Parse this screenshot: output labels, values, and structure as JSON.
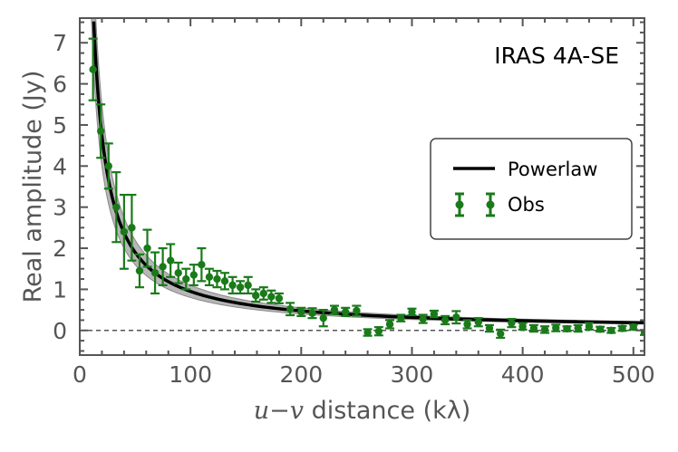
{
  "chart_data": {
    "type": "scatter",
    "title": "",
    "annotation": "IRAS 4A-SE",
    "xlabel_italic": "u−v",
    "xlabel_rest": " distance (kλ)",
    "ylabel": "Real amplitude (Jy)",
    "xlim": [
      0,
      510
    ],
    "ylim": [
      -0.6,
      7.6
    ],
    "xticks": [
      0,
      100,
      200,
      300,
      400,
      500
    ],
    "yticks": [
      0,
      1,
      2,
      3,
      4,
      5,
      6,
      7
    ],
    "legend_position": "center-right",
    "zero_line": {
      "y": 0,
      "style": "dashed",
      "color": "#555555"
    },
    "series": [
      {
        "name": "Powerlaw",
        "kind": "line",
        "color": "#000000",
        "model": {
          "form": "a*x^b",
          "a": 95,
          "b": -1.0
        },
        "band": {
          "lower_a": 80,
          "upper_a": 110,
          "color": "#9e9e9e"
        }
      },
      {
        "name": "Obs",
        "kind": "errorbar",
        "color": "#1a7a1a",
        "x": [
          12,
          19,
          26,
          33,
          40,
          47,
          54,
          61,
          68,
          75,
          82,
          89,
          96,
          103,
          110,
          117,
          124,
          131,
          138,
          145,
          152,
          159,
          166,
          173,
          180,
          190,
          200,
          210,
          220,
          230,
          240,
          250,
          260,
          270,
          280,
          290,
          300,
          310,
          320,
          330,
          340,
          350,
          360,
          370,
          380,
          390,
          400,
          410,
          420,
          430,
          440,
          450,
          460,
          470,
          480,
          490,
          500,
          510
        ],
        "y": [
          6.35,
          4.85,
          4.0,
          3.0,
          2.4,
          2.5,
          1.45,
          2.0,
          1.4,
          1.55,
          1.7,
          1.4,
          1.25,
          1.35,
          1.6,
          1.3,
          1.25,
          1.2,
          1.1,
          1.05,
          1.1,
          0.85,
          0.9,
          0.82,
          0.78,
          0.52,
          0.45,
          0.42,
          0.3,
          0.5,
          0.45,
          0.48,
          -0.05,
          -0.02,
          0.15,
          0.3,
          0.45,
          0.28,
          0.4,
          0.25,
          0.32,
          0.15,
          0.2,
          0.05,
          -0.08,
          0.18,
          0.1,
          0.05,
          0.02,
          0.06,
          0.04,
          0.05,
          0.1,
          0.03,
          0.0,
          0.05,
          0.08,
          -0.05
        ],
        "yerr": [
          0.75,
          0.65,
          0.55,
          0.85,
          0.9,
          0.8,
          0.4,
          0.45,
          0.5,
          0.45,
          0.4,
          0.25,
          0.25,
          0.25,
          0.4,
          0.2,
          0.2,
          0.2,
          0.2,
          0.15,
          0.2,
          0.15,
          0.15,
          0.15,
          0.12,
          0.15,
          0.1,
          0.12,
          0.2,
          0.1,
          0.1,
          0.12,
          0.08,
          0.1,
          0.1,
          0.08,
          0.08,
          0.1,
          0.08,
          0.1,
          0.15,
          0.1,
          0.1,
          0.08,
          0.1,
          0.1,
          0.08,
          0.08,
          0.08,
          0.08,
          0.06,
          0.08,
          0.08,
          0.06,
          0.06,
          0.06,
          0.06,
          0.06
        ]
      }
    ]
  }
}
